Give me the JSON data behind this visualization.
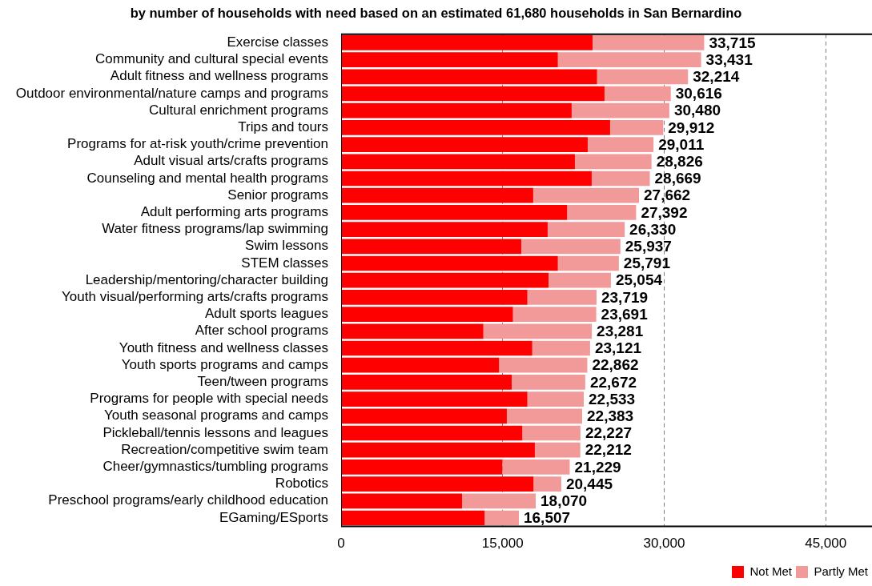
{
  "chart_data": {
    "type": "bar",
    "orientation": "horizontal",
    "stacked": true,
    "title": "by number of households with need based on an estimated 61,680 households in San Bernardino",
    "categories": [
      "Exercise classes",
      "Community and cultural special events",
      "Adult fitness and wellness programs",
      "Outdoor environmental/nature camps and programs",
      "Cultural enrichment programs",
      "Trips and tours",
      "Programs for at-risk youth/crime prevention",
      "Adult visual arts/crafts programs",
      "Counseling and mental health programs",
      "Senior programs",
      "Adult performing arts programs",
      "Water fitness programs/lap swimming",
      "Swim lessons",
      "STEM classes",
      "Leadership/mentoring/character building",
      "Youth visual/performing arts/crafts programs",
      "Adult sports leagues",
      "After school programs",
      "Youth fitness and wellness classes",
      "Youth sports programs and camps",
      "Teen/tween programs",
      "Programs for people with special needs",
      "Youth seasonal programs and camps",
      "Pickleball/tennis lessons and leagues",
      "Recreation/competitive swim team",
      "Cheer/gymnastics/tumbling programs",
      "Robotics",
      "Preschool programs/early childhood education",
      "EGaming/ESports"
    ],
    "series": [
      {
        "name": "Not Met",
        "color": "#ff0000",
        "values": [
          23350,
          20130,
          23770,
          24460,
          21410,
          24980,
          22900,
          21710,
          23270,
          17840,
          20990,
          19180,
          16730,
          20130,
          19260,
          17300,
          15960,
          13210,
          17750,
          14670,
          15840,
          17300,
          15390,
          16830,
          17990,
          14970,
          17870,
          11230,
          13330
        ]
      },
      {
        "name": "Partly Met",
        "color": "#f29a9a",
        "values": [
          10365,
          13301,
          8444,
          6156,
          9070,
          4932,
          6111,
          7116,
          5399,
          9822,
          6402,
          7150,
          9207,
          5661,
          5794,
          6419,
          7731,
          10071,
          5371,
          8192,
          6832,
          5233,
          6993,
          5397,
          4222,
          6259,
          2575,
          6840,
          3177
        ]
      }
    ],
    "totals": [
      "33,715",
      "33,431",
      "32,214",
      "30,616",
      "30,480",
      "29,912",
      "29,011",
      "28,826",
      "28,669",
      "27,662",
      "27,392",
      "26,330",
      "25,937",
      "25,791",
      "25,054",
      "23,719",
      "23,691",
      "23,281",
      "23,121",
      "22,862",
      "22,672",
      "22,533",
      "22,383",
      "22,227",
      "22,212",
      "21,229",
      "20,445",
      "18,070",
      "16,507"
    ],
    "xlim": [
      0,
      49300
    ],
    "xticks": [
      0,
      {
        "value": 15000,
        "label": "15,000"
      },
      {
        "value": 30000,
        "label": "30,000"
      },
      {
        "value": 45000,
        "label": "45,000"
      }
    ],
    "grid": "x",
    "legend": "bottom right"
  }
}
